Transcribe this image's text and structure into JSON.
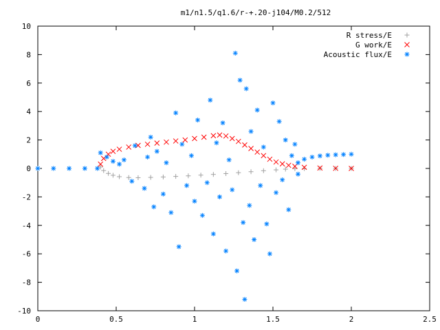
{
  "chart_data": {
    "type": "scatter",
    "title": "m1/n1.5/q1.6/r-+.20-j104/M0.2/512",
    "xlabel": "",
    "ylabel": "",
    "xlim": [
      0,
      2.5
    ],
    "ylim": [
      -10,
      10
    ],
    "x_ticks": [
      "0",
      "0.5",
      "1",
      "1.5",
      "2",
      "2.5"
    ],
    "y_ticks": [
      "10",
      "8",
      "6",
      "4",
      "2",
      "0",
      "-2",
      "-4",
      "-6",
      "-8",
      "-10"
    ],
    "grid": false,
    "legend_position": "top-right",
    "series": [
      {
        "name": "R stress/E",
        "marker": "plus",
        "color": "#a0a0a0",
        "points": [
          [
            0.4,
            0.1
          ],
          [
            0.42,
            -0.15
          ],
          [
            0.45,
            -0.35
          ],
          [
            0.48,
            -0.48
          ],
          [
            0.52,
            -0.58
          ],
          [
            0.58,
            -0.64
          ],
          [
            0.64,
            -0.65
          ],
          [
            0.72,
            -0.63
          ],
          [
            0.8,
            -0.6
          ],
          [
            0.88,
            -0.56
          ],
          [
            0.96,
            -0.52
          ],
          [
            1.04,
            -0.47
          ],
          [
            1.12,
            -0.42
          ],
          [
            1.2,
            -0.36
          ],
          [
            1.28,
            -0.3
          ],
          [
            1.36,
            -0.23
          ],
          [
            1.44,
            -0.16
          ],
          [
            1.52,
            -0.1
          ],
          [
            1.58,
            -0.05
          ],
          [
            1.64,
            -0.02
          ],
          [
            1.7,
            -0.01
          ],
          [
            1.8,
            0.0
          ],
          [
            1.9,
            0.0
          ],
          [
            2.0,
            0.0
          ]
        ]
      },
      {
        "name": "G work/E",
        "marker": "cross",
        "color": "#ff0000",
        "points": [
          [
            0.4,
            0.3
          ],
          [
            0.42,
            0.7
          ],
          [
            0.45,
            1.0
          ],
          [
            0.48,
            1.2
          ],
          [
            0.52,
            1.35
          ],
          [
            0.58,
            1.5
          ],
          [
            0.64,
            1.62
          ],
          [
            0.7,
            1.7
          ],
          [
            0.76,
            1.78
          ],
          [
            0.82,
            1.85
          ],
          [
            0.88,
            1.93
          ],
          [
            0.94,
            2.0
          ],
          [
            1.0,
            2.1
          ],
          [
            1.06,
            2.2
          ],
          [
            1.12,
            2.3
          ],
          [
            1.16,
            2.35
          ],
          [
            1.2,
            2.28
          ],
          [
            1.24,
            2.1
          ],
          [
            1.28,
            1.9
          ],
          [
            1.32,
            1.65
          ],
          [
            1.36,
            1.4
          ],
          [
            1.4,
            1.15
          ],
          [
            1.44,
            0.9
          ],
          [
            1.48,
            0.65
          ],
          [
            1.52,
            0.45
          ],
          [
            1.56,
            0.32
          ],
          [
            1.6,
            0.22
          ],
          [
            1.64,
            0.15
          ],
          [
            1.7,
            0.08
          ],
          [
            1.8,
            0.03
          ],
          [
            1.9,
            0.01
          ],
          [
            2.0,
            0.0
          ]
        ]
      },
      {
        "name": "Acoustic flux/E",
        "marker": "star",
        "color": "#0080ff",
        "points": [
          [
            0.0,
            0.0
          ],
          [
            0.1,
            0.0
          ],
          [
            0.2,
            0.0
          ],
          [
            0.3,
            0.0
          ],
          [
            0.38,
            0.0
          ],
          [
            0.4,
            1.1
          ],
          [
            0.44,
            0.8
          ],
          [
            0.48,
            0.5
          ],
          [
            0.52,
            0.3
          ],
          [
            0.55,
            0.6
          ],
          [
            0.6,
            -0.9
          ],
          [
            0.62,
            1.6
          ],
          [
            0.68,
            -1.4
          ],
          [
            0.7,
            0.8
          ],
          [
            0.72,
            2.2
          ],
          [
            0.74,
            -2.7
          ],
          [
            0.76,
            1.2
          ],
          [
            0.8,
            -1.8
          ],
          [
            0.82,
            0.4
          ],
          [
            0.85,
            -3.1
          ],
          [
            0.88,
            3.9
          ],
          [
            0.9,
            -5.5
          ],
          [
            0.92,
            1.7
          ],
          [
            0.95,
            -1.2
          ],
          [
            0.98,
            0.9
          ],
          [
            1.0,
            -2.3
          ],
          [
            1.02,
            3.4
          ],
          [
            1.05,
            -3.3
          ],
          [
            1.08,
            -1.0
          ],
          [
            1.1,
            4.8
          ],
          [
            1.12,
            -4.6
          ],
          [
            1.14,
            1.8
          ],
          [
            1.16,
            -2.0
          ],
          [
            1.18,
            3.2
          ],
          [
            1.2,
            -5.8
          ],
          [
            1.22,
            0.6
          ],
          [
            1.24,
            -1.5
          ],
          [
            1.26,
            8.1
          ],
          [
            1.27,
            -7.2
          ],
          [
            1.29,
            6.2
          ],
          [
            1.31,
            -3.8
          ],
          [
            1.32,
            -9.2
          ],
          [
            1.33,
            5.6
          ],
          [
            1.35,
            -2.6
          ],
          [
            1.36,
            2.6
          ],
          [
            1.38,
            -5.0
          ],
          [
            1.4,
            4.1
          ],
          [
            1.42,
            -1.2
          ],
          [
            1.44,
            1.5
          ],
          [
            1.46,
            -3.9
          ],
          [
            1.48,
            -6.0
          ],
          [
            1.5,
            4.6
          ],
          [
            1.52,
            -1.7
          ],
          [
            1.54,
            3.3
          ],
          [
            1.56,
            -0.8
          ],
          [
            1.58,
            2.0
          ],
          [
            1.6,
            -2.9
          ],
          [
            1.62,
            0.9
          ],
          [
            1.64,
            1.7
          ],
          [
            1.66,
            -0.4
          ],
          [
            1.66,
            0.4
          ],
          [
            1.7,
            0.65
          ],
          [
            1.75,
            0.8
          ],
          [
            1.8,
            0.88
          ],
          [
            1.85,
            0.93
          ],
          [
            1.9,
            0.96
          ],
          [
            1.95,
            0.98
          ],
          [
            2.0,
            1.0
          ]
        ]
      }
    ]
  }
}
